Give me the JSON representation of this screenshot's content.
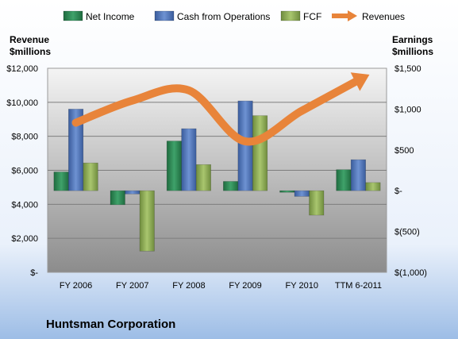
{
  "chart_data": {
    "type": "bar",
    "title": "Huntsman Corporation",
    "legend_position": "top",
    "legend": [
      "Net Income",
      "Cash from Operations",
      "FCF",
      "Revenues"
    ],
    "left_axis": {
      "label_line1": "Revenue",
      "label_line2": "$millions",
      "range": [
        0,
        12000
      ],
      "ticks": [
        0,
        2000,
        4000,
        6000,
        8000,
        10000,
        12000
      ],
      "tick_labels": [
        "$-",
        "$2,000",
        "$4,000",
        "$6,000",
        "$8,000",
        "$10,000",
        "$12,000"
      ]
    },
    "right_axis": {
      "label_line1": "Earnings",
      "label_line2": "$millions",
      "range": [
        -1000,
        1500
      ],
      "ticks": [
        -1000,
        -500,
        0,
        500,
        1000,
        1500
      ],
      "tick_labels": [
        "$(1,000)",
        "$(500)",
        "$-",
        "$500",
        "$1,000",
        "$1,500"
      ]
    },
    "categories": [
      "FY 2006",
      "FY 2007",
      "FY 2008",
      "FY 2009",
      "FY 2010",
      "TTM 6-2011"
    ],
    "series": [
      {
        "name": "Net Income",
        "axis": "right",
        "type": "bar",
        "color": "#2E8B57",
        "values": [
          230,
          -172,
          609,
          114,
          -20,
          258
        ]
      },
      {
        "name": "Cash from Operations",
        "axis": "right",
        "type": "bar",
        "color": "#4F74B8",
        "values": [
          1000,
          -40,
          760,
          1100,
          -70,
          380
        ]
      },
      {
        "name": "FCF",
        "axis": "right",
        "type": "bar",
        "color": "#8FAE55",
        "values": [
          340,
          -740,
          320,
          920,
          -300,
          100
        ]
      },
      {
        "name": "Revenues",
        "axis": "left",
        "type": "line",
        "color": "#E8843A",
        "values": [
          8800,
          10100,
          10700,
          7700,
          9500,
          11300
        ]
      }
    ],
    "grid": true
  }
}
